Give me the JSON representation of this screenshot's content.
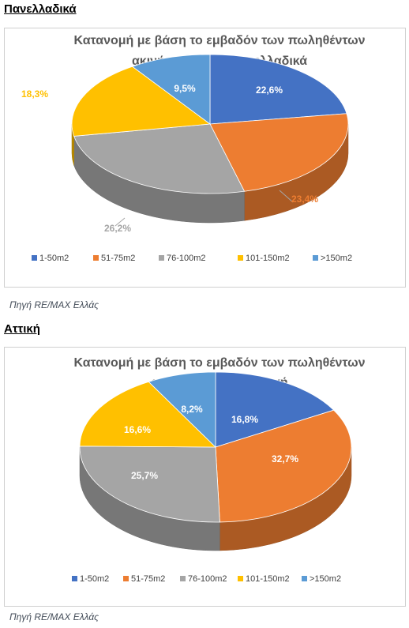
{
  "sections": [
    {
      "heading": "Πανελλαδικά",
      "source": "Πηγή RE/MAX Ελλάς",
      "chart_data": {
        "type": "pie",
        "title_lines": [
          "Κατανομή με βάση το εμβαδόν των πωληθέντων",
          "ακινήτων 2024 I Πανελλαδικά"
        ],
        "categories": [
          "1-50m2",
          "51-75m2",
          "76-100m2",
          "101-150m2",
          ">150m2"
        ],
        "values": [
          22.6,
          23.4,
          26.2,
          18.3,
          9.5
        ],
        "value_labels": [
          "22,6%",
          "23,4%",
          "26,2%",
          "18,3%",
          "9,5%"
        ],
        "colors": [
          "#4472c4",
          "#ed7d31",
          "#a5a5a5",
          "#ffc000",
          "#5b9bd5"
        ],
        "legend_position": "bottom",
        "style": "3d"
      }
    },
    {
      "heading": "Αττική",
      "source": "Πηγή RE/MAX Ελλάς",
      "chart_data": {
        "type": "pie",
        "title_lines": [
          "Κατανομή με βάση το εμβαδόν των πωληθέντων",
          "ακινήτων 2024 I Αττική"
        ],
        "categories": [
          "1-50m2",
          "51-75m2",
          "76-100m2",
          "101-150m2",
          ">150m2"
        ],
        "values": [
          16.8,
          32.7,
          25.7,
          16.6,
          8.2
        ],
        "value_labels": [
          "16,8%",
          "32,7%",
          "25,7%",
          "16,6%",
          "8,2%"
        ],
        "colors": [
          "#4472c4",
          "#ed7d31",
          "#a5a5a5",
          "#ffc000",
          "#5b9bd5"
        ],
        "legend_position": "bottom",
        "style": "3d"
      }
    }
  ]
}
